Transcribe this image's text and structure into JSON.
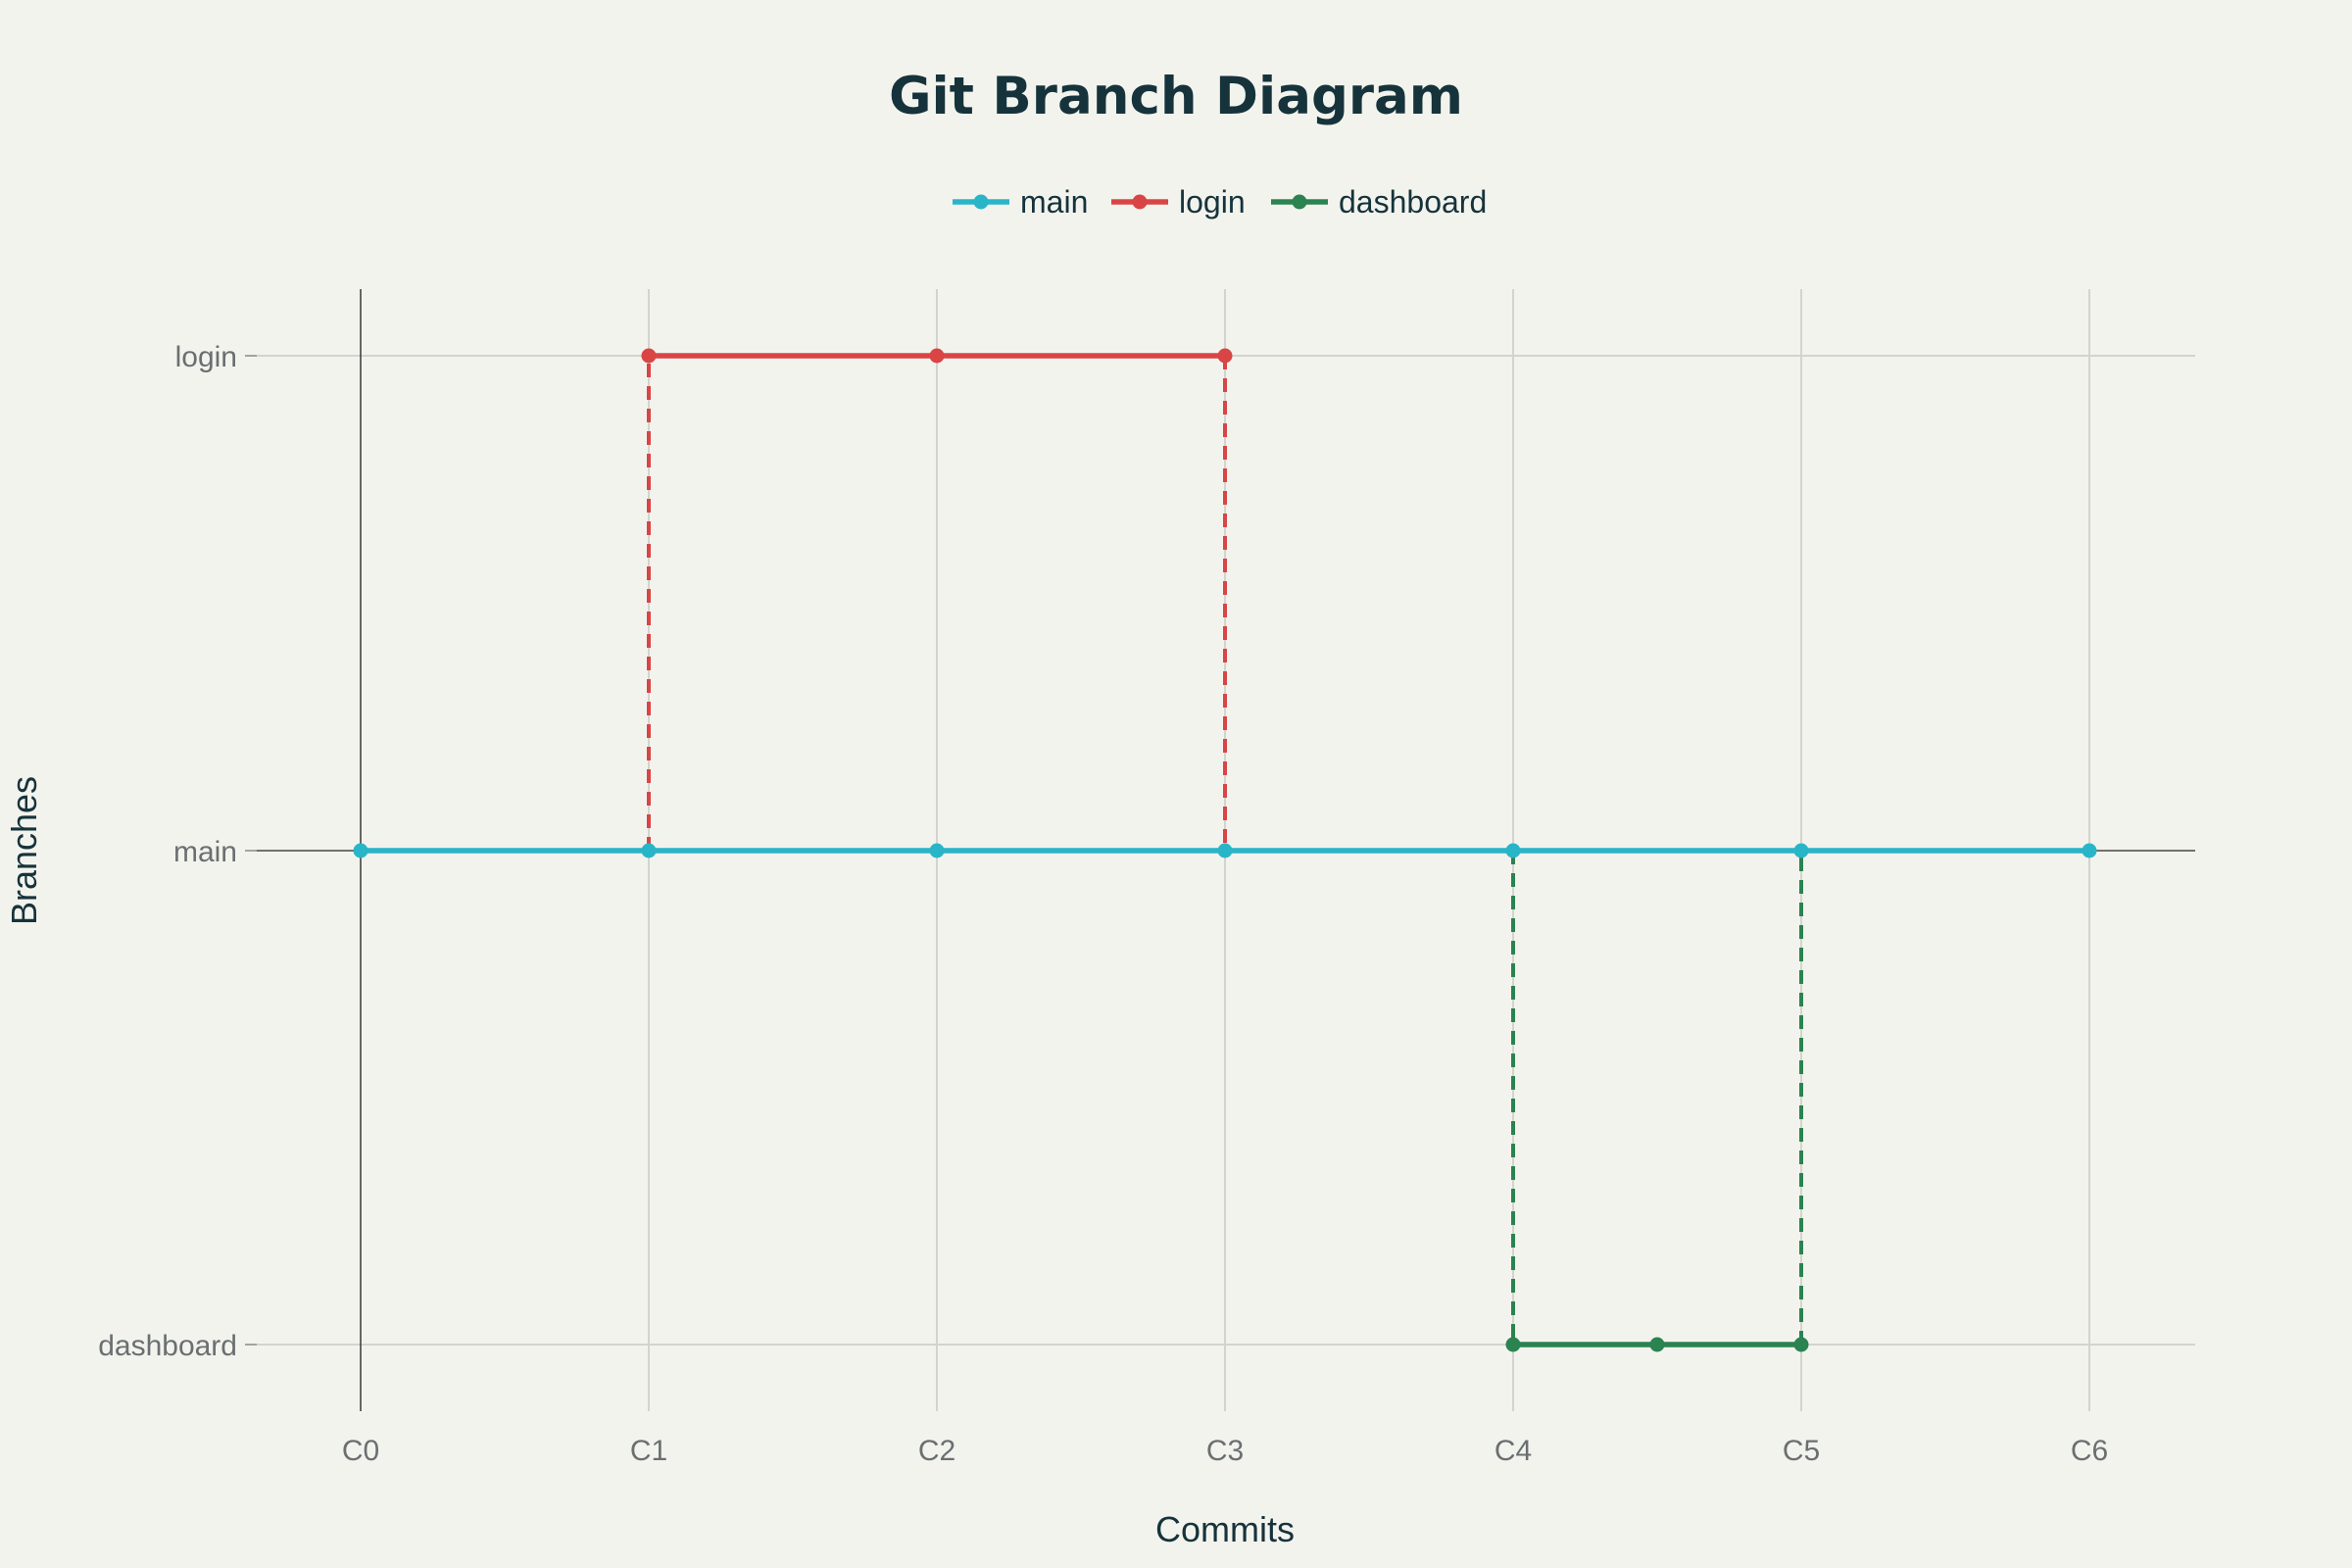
{
  "chart_data": {
    "type": "line",
    "title": "Git Branch Diagram",
    "xlabel": "Commits",
    "ylabel": "Branches",
    "x_categories": [
      "C0",
      "C1",
      "C2",
      "C3",
      "C4",
      "C5",
      "C6"
    ],
    "y_categories": [
      "dashboard",
      "main",
      "login"
    ],
    "legend_position": "top-center",
    "grid": true,
    "series": [
      {
        "name": "main",
        "color": "#29b5c8",
        "style": "solid",
        "x": [
          0,
          1,
          2,
          3,
          4,
          5,
          6
        ],
        "y": [
          "main",
          "main",
          "main",
          "main",
          "main",
          "main",
          "main"
        ]
      },
      {
        "name": "login",
        "color": "#d94545",
        "style": "solid",
        "x": [
          1,
          2,
          3
        ],
        "y": [
          "login",
          "login",
          "login"
        ]
      },
      {
        "name": "dashboard",
        "color": "#2a8350",
        "style": "solid",
        "x": [
          4,
          4.5,
          5
        ],
        "y": [
          "dashboard",
          "dashboard",
          "dashboard"
        ]
      }
    ],
    "connectors": [
      {
        "color": "#d94545",
        "style": "dashed",
        "x": [
          1,
          1
        ],
        "y": [
          "main",
          "login"
        ]
      },
      {
        "color": "#d94545",
        "style": "dashed",
        "x": [
          3,
          3
        ],
        "y": [
          "login",
          "main"
        ]
      },
      {
        "color": "#2a8350",
        "style": "dashed",
        "x": [
          4,
          4
        ],
        "y": [
          "main",
          "dashboard"
        ]
      },
      {
        "color": "#2a8350",
        "style": "dashed",
        "x": [
          5,
          5
        ],
        "y": [
          "dashboard",
          "main"
        ]
      }
    ]
  }
}
